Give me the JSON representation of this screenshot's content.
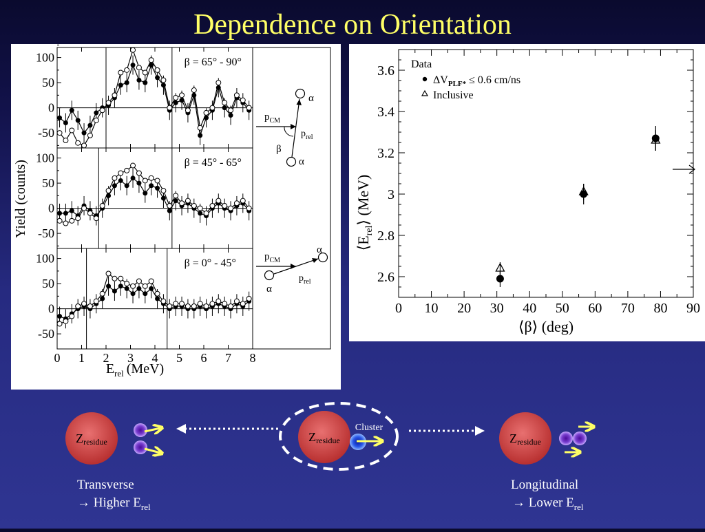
{
  "slide": {
    "title": "Dependence on Orientation",
    "bottom": {
      "residue_label": "Z",
      "residue_sub": "residue",
      "cluster_label": "Cluster",
      "left_label_line1": "Transverse",
      "left_label_line2": "→ Higher E",
      "left_label_sub": "rel",
      "right_label_line1": "Longitudinal",
      "right_label_line2": "→ Lower E",
      "right_label_sub": "rel"
    }
  },
  "left_figure": {
    "ylabel": "Yield (counts)",
    "xlabel": "E",
    "xlabel_sub": "rel",
    "xlabel_unit": "(MeV)",
    "x_ticks": [
      "0",
      "1",
      "2",
      "3",
      "4",
      "5",
      "6",
      "7",
      "8"
    ],
    "y_ticks": [
      "100",
      "50",
      "0",
      "-50"
    ],
    "diagram_labels": {
      "p": "p",
      "cm": "CM",
      "rel": "rel",
      "alpha": "α",
      "beta": "β"
    }
  },
  "chart_data": [
    {
      "type": "line",
      "panel": "top",
      "annotation": "β = 65° - 90°",
      "xlim": [
        0,
        8
      ],
      "ylim": [
        -80,
        120
      ],
      "window": [
        2.0,
        4.7
      ],
      "x": [
        0.1,
        0.35,
        0.6,
        0.85,
        1.1,
        1.35,
        1.6,
        1.85,
        2.1,
        2.35,
        2.6,
        2.85,
        3.1,
        3.35,
        3.6,
        3.85,
        4.1,
        4.35,
        4.6,
        4.85,
        5.1,
        5.35,
        5.6,
        5.85,
        6.1,
        6.35,
        6.6,
        6.85,
        7.1,
        7.35,
        7.6,
        7.85
      ],
      "series": [
        {
          "name": "ΔV_PLF* ≤ 0.6 cm/ns",
          "marker": "filled",
          "values": [
            -20,
            -30,
            -5,
            -25,
            -50,
            -35,
            -10,
            0,
            5,
            20,
            45,
            50,
            85,
            55,
            50,
            85,
            60,
            45,
            -5,
            10,
            15,
            -10,
            25,
            -55,
            -20,
            -5,
            40,
            0,
            -15,
            20,
            10,
            -5
          ]
        },
        {
          "name": "Inclusive",
          "marker": "open",
          "values": [
            -50,
            -65,
            -45,
            -70,
            -75,
            -55,
            -25,
            -5,
            10,
            25,
            70,
            75,
            115,
            80,
            70,
            95,
            75,
            55,
            0,
            20,
            25,
            -5,
            35,
            -40,
            -10,
            0,
            50,
            10,
            -5,
            25,
            15,
            0
          ]
        }
      ]
    },
    {
      "type": "line",
      "panel": "middle",
      "annotation": "β = 45° - 65°",
      "xlim": [
        0,
        8
      ],
      "ylim": [
        -80,
        120
      ],
      "window": [
        1.7,
        4.7
      ],
      "x": [
        0.1,
        0.35,
        0.6,
        0.85,
        1.1,
        1.35,
        1.6,
        1.85,
        2.1,
        2.35,
        2.6,
        2.85,
        3.1,
        3.35,
        3.6,
        3.85,
        4.1,
        4.35,
        4.6,
        4.85,
        5.1,
        5.35,
        5.6,
        5.85,
        6.1,
        6.35,
        6.6,
        6.85,
        7.1,
        7.35,
        7.6,
        7.85
      ],
      "series": [
        {
          "name": "ΔV_PLF* ≤ 0.6 cm/ns",
          "marker": "filled",
          "values": [
            -10,
            -10,
            -5,
            -15,
            5,
            -5,
            -15,
            0,
            25,
            45,
            55,
            45,
            60,
            50,
            30,
            45,
            40,
            20,
            -5,
            15,
            5,
            10,
            0,
            -10,
            -15,
            0,
            10,
            0,
            -5,
            5,
            10,
            -5
          ]
        },
        {
          "name": "Inclusive",
          "marker": "open",
          "values": [
            -25,
            -30,
            -25,
            -20,
            0,
            -10,
            -20,
            5,
            35,
            60,
            70,
            75,
            85,
            70,
            55,
            60,
            55,
            35,
            5,
            25,
            10,
            15,
            5,
            0,
            -10,
            5,
            15,
            5,
            0,
            10,
            15,
            0
          ]
        }
      ]
    },
    {
      "type": "line",
      "panel": "bottom",
      "annotation": "β = 0° - 45°",
      "xlim": [
        0,
        8
      ],
      "ylim": [
        -80,
        120
      ],
      "window": [
        1.2,
        4.5
      ],
      "x": [
        0.1,
        0.35,
        0.6,
        0.85,
        1.1,
        1.35,
        1.6,
        1.85,
        2.1,
        2.35,
        2.6,
        2.85,
        3.1,
        3.35,
        3.6,
        3.85,
        4.1,
        4.35,
        4.6,
        4.85,
        5.1,
        5.35,
        5.6,
        5.85,
        6.1,
        6.35,
        6.6,
        6.85,
        7.1,
        7.35,
        7.6,
        7.85
      ],
      "series": [
        {
          "name": "ΔV_PLF* ≤ 0.6 cm/ns",
          "marker": "filled",
          "values": [
            -15,
            -20,
            -10,
            0,
            5,
            0,
            10,
            20,
            45,
            35,
            45,
            40,
            30,
            40,
            30,
            40,
            20,
            10,
            0,
            5,
            5,
            0,
            0,
            5,
            0,
            5,
            10,
            5,
            0,
            10,
            5,
            15
          ]
        },
        {
          "name": "Inclusive",
          "marker": "open",
          "values": [
            -30,
            -25,
            -15,
            5,
            10,
            5,
            15,
            30,
            70,
            60,
            60,
            50,
            45,
            55,
            45,
            55,
            30,
            15,
            5,
            10,
            10,
            5,
            5,
            10,
            5,
            10,
            15,
            10,
            5,
            15,
            10,
            20
          ]
        }
      ]
    },
    {
      "type": "scatter",
      "panel": "right",
      "xlabel": "⟨β⟩ (deg)",
      "ylabel": "⟨E",
      "ylabel_sub": "rel",
      "ylabel_unit": "⟩ (MeV)",
      "xlim": [
        0,
        90
      ],
      "ylim": [
        2.5,
        3.7
      ],
      "x_ticks": [
        "0",
        "10",
        "20",
        "30",
        "40",
        "50",
        "60",
        "70",
        "80",
        "90"
      ],
      "y_ticks": [
        "2.6",
        "2.8",
        "3",
        "3.2",
        "3.4",
        "3.6"
      ],
      "legend_title": "Data",
      "legend_items": [
        {
          "label": "ΔV",
          "sub": "PLF*",
          "suffix": " ≤ 0.6 cm/ns",
          "marker": "filled"
        },
        {
          "label": "Inclusive",
          "sub": "",
          "suffix": "",
          "marker": "open-triangle"
        }
      ],
      "legend_position": "top-left",
      "arrow_at_y": 3.12,
      "series": [
        {
          "name": "ΔV_PLF* ≤ 0.6 cm/ns",
          "marker": "filled",
          "points": [
            {
              "x": 31,
              "y": 2.59,
              "err": 0.04
            },
            {
              "x": 56.5,
              "y": 3.0,
              "err": 0.05
            },
            {
              "x": 78.5,
              "y": 3.27,
              "err": 0.06
            }
          ]
        },
        {
          "name": "Inclusive",
          "marker": "open-triangle",
          "points": [
            {
              "x": 31,
              "y": 2.64,
              "err": 0.03
            },
            {
              "x": 56.5,
              "y": 3.01,
              "err": 0.04
            },
            {
              "x": 78.5,
              "y": 3.26,
              "err": 0.05
            }
          ]
        }
      ]
    }
  ]
}
